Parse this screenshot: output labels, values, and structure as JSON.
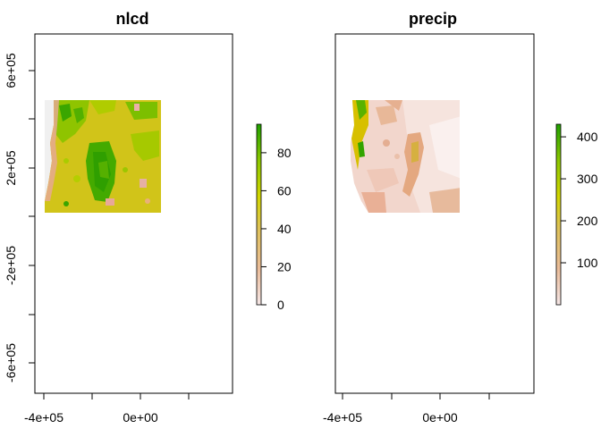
{
  "panels": [
    {
      "title": "nlcd",
      "legend_ticks": [
        "0",
        "20",
        "40",
        "60",
        "80"
      ],
      "legend_values": [
        0,
        20,
        40,
        60,
        80
      ],
      "legend_range": [
        0,
        95
      ]
    },
    {
      "title": "precip",
      "legend_ticks": [
        "100",
        "200",
        "300",
        "400"
      ],
      "legend_values": [
        100,
        200,
        300,
        400
      ],
      "legend_range": [
        0,
        430
      ]
    }
  ],
  "x_ticks": [
    "-4e+05",
    "0e+00"
  ],
  "y_ticks": [
    "6e+05",
    "2e+05",
    "-2e+05",
    "-6e+05"
  ],
  "colors": {
    "low": "#f2dede",
    "mid_low": "#e9b07a",
    "mid": "#d9c820",
    "mid_high": "#aacc00",
    "high": "#33a600",
    "na": "#f0f0f0"
  }
}
